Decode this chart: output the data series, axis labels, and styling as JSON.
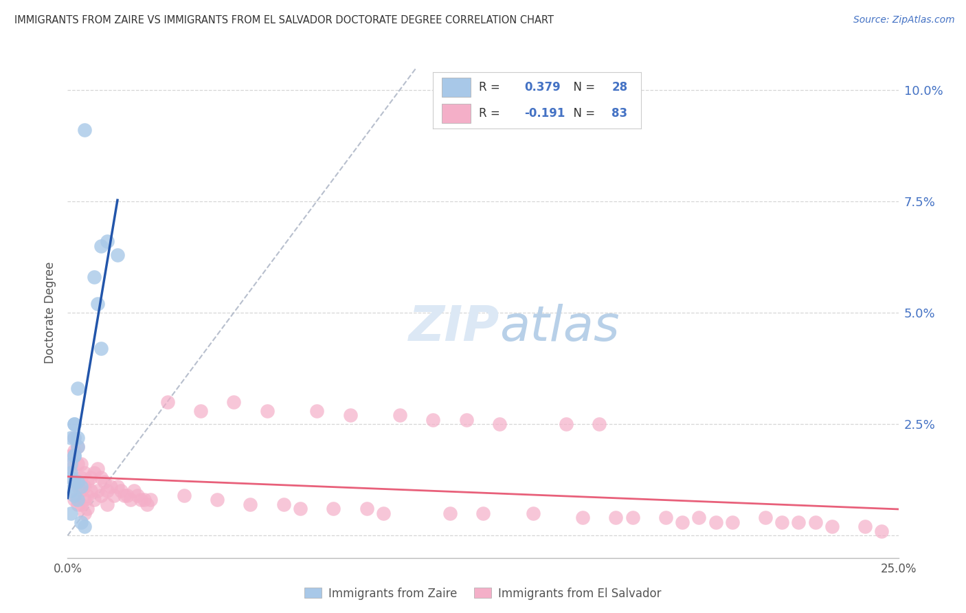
{
  "title": "IMMIGRANTS FROM ZAIRE VS IMMIGRANTS FROM EL SALVADOR DOCTORATE DEGREE CORRELATION CHART",
  "source": "Source: ZipAtlas.com",
  "ylabel": "Doctorate Degree",
  "ytick_values": [
    0.0,
    0.025,
    0.05,
    0.075,
    0.1
  ],
  "ytick_labels": [
    "",
    "2.5%",
    "5.0%",
    "7.5%",
    "10.0%"
  ],
  "xlim": [
    0.0,
    0.25
  ],
  "ylim": [
    -0.005,
    0.105
  ],
  "zaire_R": 0.379,
  "zaire_N": 28,
  "salvador_R": -0.191,
  "salvador_N": 83,
  "zaire_color": "#a8c8e8",
  "salvador_color": "#f4afc8",
  "zaire_line_color": "#2255aa",
  "salvador_line_color": "#e8607a",
  "trendline_dashed_color": "#b0b8c8",
  "background_color": "#ffffff",
  "grid_color": "#cccccc",
  "title_color": "#333333",
  "source_color": "#4472c4",
  "tick_color": "#4472c4",
  "zaire_x": [
    0.005,
    0.01,
    0.008,
    0.009,
    0.012,
    0.01,
    0.015,
    0.003,
    0.002,
    0.002,
    0.002,
    0.003,
    0.001,
    0.003,
    0.002,
    0.002,
    0.001,
    0.001,
    0.001,
    0.002,
    0.003,
    0.004,
    0.001,
    0.002,
    0.003,
    0.001,
    0.004,
    0.005
  ],
  "zaire_y": [
    0.091,
    0.065,
    0.058,
    0.052,
    0.066,
    0.042,
    0.063,
    0.033,
    0.025,
    0.025,
    0.022,
    0.022,
    0.022,
    0.02,
    0.018,
    0.018,
    0.016,
    0.014,
    0.013,
    0.012,
    0.012,
    0.011,
    0.01,
    0.009,
    0.008,
    0.005,
    0.003,
    0.002
  ],
  "salvador_x": [
    0.001,
    0.001,
    0.002,
    0.002,
    0.002,
    0.002,
    0.003,
    0.003,
    0.003,
    0.003,
    0.004,
    0.004,
    0.004,
    0.004,
    0.005,
    0.005,
    0.005,
    0.005,
    0.006,
    0.006,
    0.006,
    0.007,
    0.007,
    0.008,
    0.008,
    0.009,
    0.009,
    0.01,
    0.01,
    0.011,
    0.012,
    0.012,
    0.013,
    0.014,
    0.015,
    0.016,
    0.017,
    0.018,
    0.019,
    0.02,
    0.021,
    0.022,
    0.023,
    0.024,
    0.025,
    0.03,
    0.035,
    0.04,
    0.045,
    0.05,
    0.055,
    0.06,
    0.065,
    0.07,
    0.075,
    0.08,
    0.085,
    0.09,
    0.095,
    0.1,
    0.11,
    0.115,
    0.12,
    0.125,
    0.13,
    0.14,
    0.15,
    0.155,
    0.16,
    0.165,
    0.17,
    0.18,
    0.185,
    0.19,
    0.195,
    0.2,
    0.21,
    0.215,
    0.22,
    0.225,
    0.23,
    0.24,
    0.245
  ],
  "salvador_y": [
    0.018,
    0.015,
    0.022,
    0.019,
    0.012,
    0.008,
    0.02,
    0.016,
    0.011,
    0.007,
    0.013,
    0.01,
    0.016,
    0.007,
    0.014,
    0.011,
    0.008,
    0.005,
    0.012,
    0.009,
    0.006,
    0.013,
    0.01,
    0.014,
    0.008,
    0.015,
    0.01,
    0.013,
    0.009,
    0.012,
    0.01,
    0.007,
    0.011,
    0.009,
    0.011,
    0.01,
    0.009,
    0.009,
    0.008,
    0.01,
    0.009,
    0.008,
    0.008,
    0.007,
    0.008,
    0.03,
    0.009,
    0.028,
    0.008,
    0.03,
    0.007,
    0.028,
    0.007,
    0.006,
    0.028,
    0.006,
    0.027,
    0.006,
    0.005,
    0.027,
    0.026,
    0.005,
    0.026,
    0.005,
    0.025,
    0.005,
    0.025,
    0.004,
    0.025,
    0.004,
    0.004,
    0.004,
    0.003,
    0.004,
    0.003,
    0.003,
    0.004,
    0.003,
    0.003,
    0.003,
    0.002,
    0.002,
    0.001
  ]
}
